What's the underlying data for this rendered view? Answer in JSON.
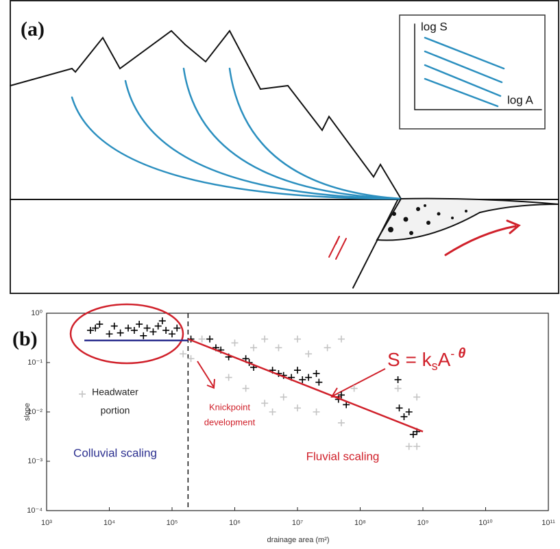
{
  "panel_a": {
    "label": "(a)",
    "inset": {
      "y_label": "log S",
      "x_label": "log A"
    }
  },
  "chart_data": {
    "type": "scatter",
    "label": "(b)",
    "x_label": "drainage area (m²)",
    "y_label": "slope",
    "xscale": "log",
    "yscale": "log",
    "xlim": [
      1000,
      100000000000
    ],
    "ylim": [
      0.0001,
      1
    ],
    "xticks": [
      {
        "value": 1000,
        "label": "10³"
      },
      {
        "value": 10000,
        "label": "10⁴"
      },
      {
        "value": 100000,
        "label": "10⁵"
      },
      {
        "value": 1000000,
        "label": "10⁶"
      },
      {
        "value": 10000000,
        "label": "10⁷"
      },
      {
        "value": 100000000,
        "label": "10⁸"
      },
      {
        "value": 1000000000,
        "label": "10⁹"
      },
      {
        "value": 10000000000,
        "label": "10¹⁰"
      },
      {
        "value": 100000000000,
        "label": "10¹¹"
      }
    ],
    "yticks": [
      {
        "value": 0.0001,
        "label": "10⁻⁴"
      },
      {
        "value": 0.001,
        "label": "10⁻³"
      },
      {
        "value": 0.01,
        "label": "10⁻²"
      },
      {
        "value": 0.1,
        "label": "10⁻¹"
      },
      {
        "value": 1,
        "label": "10⁰"
      }
    ],
    "series": [
      {
        "color": "#c4c4c4",
        "x": [
          3700,
          150000,
          200000,
          300000,
          800000,
          1000000,
          1500000,
          2000000,
          3000000,
          3000000,
          4000000,
          5000000,
          6000000,
          10000000,
          10000000,
          15000000,
          20000000,
          30000000,
          50000000,
          50000000,
          80000000,
          400000000,
          600000000,
          800000000,
          800000000
        ],
        "values": [
          0.023,
          0.15,
          0.12,
          0.3,
          0.05,
          0.25,
          0.03,
          0.2,
          0.3,
          0.015,
          0.01,
          0.2,
          0.02,
          0.3,
          0.012,
          0.15,
          0.01,
          0.2,
          0.3,
          0.006,
          0.03,
          0.03,
          0.002,
          0.02,
          0.002
        ]
      },
      {
        "color": "#000000",
        "x": [
          5000,
          6000,
          7000,
          10000,
          12000,
          15000,
          20000,
          25000,
          30000,
          35000,
          40000,
          50000,
          60000,
          70000,
          80000,
          100000,
          120000,
          200000,
          400000,
          500000,
          600000,
          800000,
          1500000,
          1700000,
          2000000,
          4000000,
          5000000,
          6000000,
          8000000,
          10000000,
          12000000,
          15000000,
          20000000,
          22000000,
          45000000,
          50000000,
          60000000,
          400000000,
          420000000,
          500000000,
          600000000,
          700000000,
          800000000
        ],
        "values": [
          0.45,
          0.5,
          0.6,
          0.38,
          0.55,
          0.4,
          0.5,
          0.45,
          0.6,
          0.35,
          0.5,
          0.42,
          0.55,
          0.7,
          0.45,
          0.38,
          0.5,
          0.3,
          0.3,
          0.2,
          0.18,
          0.13,
          0.12,
          0.1,
          0.08,
          0.07,
          0.06,
          0.055,
          0.05,
          0.07,
          0.045,
          0.05,
          0.06,
          0.04,
          0.018,
          0.022,
          0.014,
          0.045,
          0.012,
          0.008,
          0.01,
          0.0035,
          0.004
        ]
      }
    ],
    "lines": [
      {
        "color": "#2b2f8f",
        "x": [
          4000,
          180000
        ],
        "values": [
          0.28,
          0.28
        ]
      },
      {
        "color": "#d0202a",
        "x": [
          180000,
          1000000000
        ],
        "values": [
          0.3,
          0.004
        ]
      }
    ],
    "divider_x": 180000,
    "annotations": {
      "headwater": [
        "Headwater",
        "portion"
      ],
      "knickpoint": [
        "Knickpoint",
        "development"
      ],
      "colluvial": "Colluvial scaling",
      "fluvial": "Fluvial scaling",
      "equation": [
        "S = k",
        "s",
        "A",
        "- ",
        "θ"
      ]
    }
  }
}
